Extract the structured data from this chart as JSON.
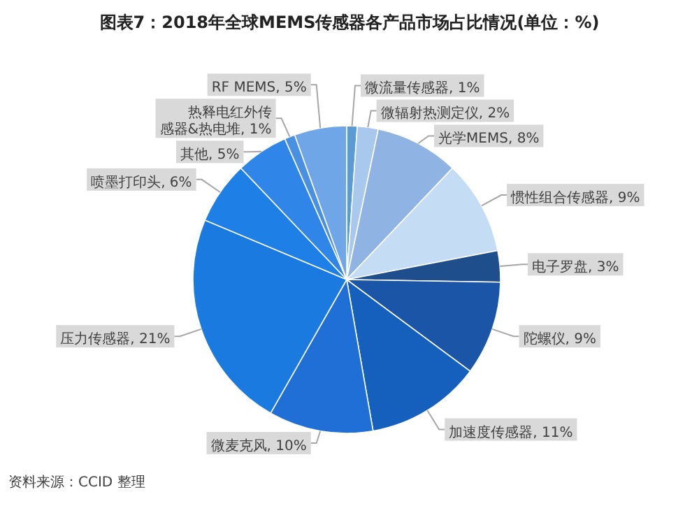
{
  "chart_data": {
    "type": "pie",
    "title": "图表7：2018年全球MEMS传感器各产品市场占比情况(单位：%)",
    "categories": [
      "微流量传感器",
      "微辐射热测定仪",
      "光学MEMS",
      "惯性组合传感器",
      "电子罗盘",
      "陀螺仪",
      "加速度传感器",
      "微麦克风",
      "压力传感器",
      "喷墨打印头",
      "其他",
      "热释电红外传感器&热电堆",
      "RF MEMS"
    ],
    "values": [
      1,
      2,
      8,
      9,
      3,
      9,
      11,
      10,
      21,
      6,
      5,
      1,
      5
    ],
    "value_labels": [
      "1%",
      "2%",
      "8%",
      "9%",
      "3%",
      "9%",
      "11%",
      "10%",
      "21%",
      "6%",
      "5%",
      "1%",
      "5%"
    ],
    "colors": [
      "#5b9bd5",
      "#a9c8ee",
      "#8fb4e3",
      "#c5dcf5",
      "#1f4e8c",
      "#1a55a8",
      "#1560bd",
      "#1f6fd6",
      "#1a7ae0",
      "#1e7fe6",
      "#2f86e8",
      "#4a90e2",
      "#6fa6e8"
    ],
    "annotations": [
      "资料来源：CCID 整理"
    ]
  }
}
